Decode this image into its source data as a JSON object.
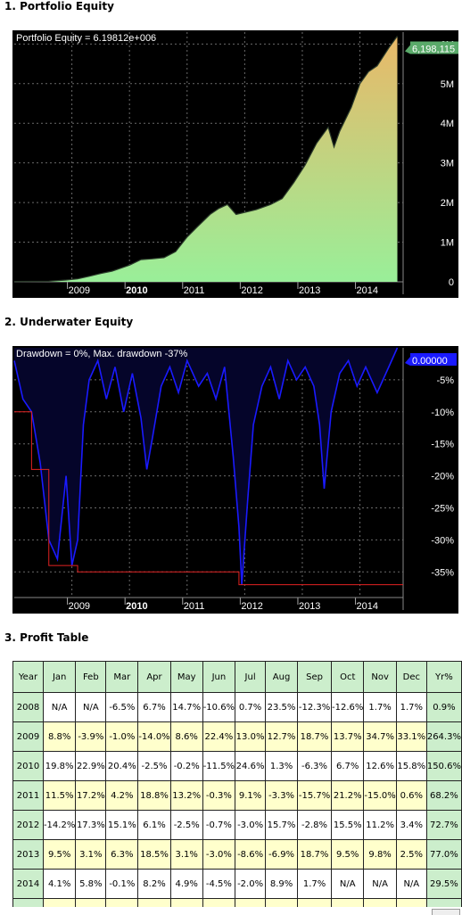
{
  "sections": {
    "s1": "1. Portfolio Equity",
    "s2": "2. Underwater Equity",
    "s3": "3. Profit Table"
  },
  "colors": {
    "grid": "#6a6a6a",
    "area_top": "#e9b868",
    "area_bottom": "#99ef99",
    "equity_line": "#2b3b2b",
    "dd_line": "#1a1aff",
    "dd_fill": "#05052a",
    "maxdd": "#e22222",
    "badge_green": "#5aaa6a",
    "badge_blue": "#1a1aff"
  },
  "chart_data": [
    {
      "type": "area",
      "label": "Portfolio Equity = 6.19812e+006",
      "last_value_label": "6,198,115",
      "y_ticks": [
        "0",
        "1M",
        "2M",
        "3M",
        "4M",
        "5M",
        "6M"
      ],
      "ylim": [
        0,
        6300000
      ],
      "x_ticks": [
        "2009",
        "2010",
        "2011",
        "2012",
        "2013",
        "2014"
      ],
      "x_bold": "2010",
      "xlim": [
        2008.0,
        2014.75
      ],
      "points": [
        [
          2008.0,
          10000
        ],
        [
          2008.3,
          11000
        ],
        [
          2008.6,
          14000
        ],
        [
          2008.9,
          45000
        ],
        [
          2009.1,
          75000
        ],
        [
          2009.3,
          140000
        ],
        [
          2009.5,
          210000
        ],
        [
          2009.7,
          270000
        ],
        [
          2010.0,
          420000
        ],
        [
          2010.2,
          560000
        ],
        [
          2010.4,
          580000
        ],
        [
          2010.6,
          610000
        ],
        [
          2010.8,
          760000
        ],
        [
          2011.0,
          1130000
        ],
        [
          2011.2,
          1420000
        ],
        [
          2011.4,
          1700000
        ],
        [
          2011.55,
          1850000
        ],
        [
          2011.7,
          1950000
        ],
        [
          2011.85,
          1700000
        ],
        [
          2012.0,
          1750000
        ],
        [
          2012.2,
          1820000
        ],
        [
          2012.45,
          1950000
        ],
        [
          2012.65,
          2100000
        ],
        [
          2012.85,
          2500000
        ],
        [
          2013.05,
          2950000
        ],
        [
          2013.25,
          3500000
        ],
        [
          2013.45,
          3900000
        ],
        [
          2013.55,
          3400000
        ],
        [
          2013.65,
          3800000
        ],
        [
          2013.85,
          4400000
        ],
        [
          2014.0,
          5000000
        ],
        [
          2014.15,
          5300000
        ],
        [
          2014.3,
          5450000
        ],
        [
          2014.5,
          5900000
        ],
        [
          2014.65,
          6198115
        ]
      ]
    },
    {
      "type": "area",
      "label": "Drawdown = 0%, Max. drawdown -37%",
      "last_value_label": "0.00000",
      "y_ticks": [
        "-5%",
        "-10%",
        "-15%",
        "-20%",
        "-25%",
        "-30%",
        "-35%"
      ],
      "ylim": [
        -39,
        0
      ],
      "x_ticks": [
        "2009",
        "2010",
        "2011",
        "2012",
        "2013",
        "2014"
      ],
      "x_bold": "2010",
      "xlim": [
        2008.0,
        2014.75
      ],
      "max_drawdown": -37,
      "max_drawdown_steps": [
        [
          2008.0,
          -10
        ],
        [
          2008.3,
          -19
        ],
        [
          2008.6,
          -34
        ],
        [
          2009.1,
          -35
        ],
        [
          2011.9,
          -37
        ],
        [
          2014.75,
          -37
        ]
      ],
      "drawdown": [
        [
          2008.0,
          -2
        ],
        [
          2008.15,
          -8
        ],
        [
          2008.3,
          -10
        ],
        [
          2008.45,
          -18
        ],
        [
          2008.6,
          -30
        ],
        [
          2008.75,
          -33
        ],
        [
          2008.9,
          -20
        ],
        [
          2009.0,
          -34
        ],
        [
          2009.1,
          -30
        ],
        [
          2009.2,
          -12
        ],
        [
          2009.3,
          -5
        ],
        [
          2009.45,
          -2
        ],
        [
          2009.6,
          -8
        ],
        [
          2009.75,
          -3
        ],
        [
          2009.9,
          -10
        ],
        [
          2010.05,
          -4
        ],
        [
          2010.2,
          -11
        ],
        [
          2010.3,
          -19
        ],
        [
          2010.4,
          -14
        ],
        [
          2010.55,
          -6
        ],
        [
          2010.7,
          -3
        ],
        [
          2010.85,
          -7
        ],
        [
          2011.0,
          -2
        ],
        [
          2011.2,
          -6
        ],
        [
          2011.35,
          -4
        ],
        [
          2011.5,
          -8
        ],
        [
          2011.65,
          -3
        ],
        [
          2011.8,
          -17
        ],
        [
          2011.9,
          -28
        ],
        [
          2011.95,
          -37
        ],
        [
          2012.05,
          -24
        ],
        [
          2012.15,
          -12
        ],
        [
          2012.3,
          -6
        ],
        [
          2012.45,
          -3
        ],
        [
          2012.6,
          -8
        ],
        [
          2012.75,
          -2
        ],
        [
          2012.9,
          -5
        ],
        [
          2013.05,
          -3
        ],
        [
          2013.2,
          -6
        ],
        [
          2013.3,
          -12
        ],
        [
          2013.38,
          -22
        ],
        [
          2013.5,
          -10
        ],
        [
          2013.65,
          -4
        ],
        [
          2013.8,
          -2
        ],
        [
          2013.95,
          -6
        ],
        [
          2014.1,
          -3
        ],
        [
          2014.3,
          -7
        ],
        [
          2014.5,
          -3
        ],
        [
          2014.65,
          0
        ]
      ]
    },
    {
      "type": "table",
      "columns": [
        "Year",
        "Jan",
        "Feb",
        "Mar",
        "Apr",
        "May",
        "Jun",
        "Jul",
        "Aug",
        "Sep",
        "Oct",
        "Nov",
        "Dec",
        "Yr%"
      ],
      "rows": [
        [
          "2008",
          "N/A",
          "N/A",
          "-6.5%",
          "6.7%",
          "14.7%",
          "-10.6%",
          "0.7%",
          "23.5%",
          "-12.3%",
          "-12.6%",
          "1.7%",
          "1.7%",
          "0.9%"
        ],
        [
          "2009",
          "8.8%",
          "-3.9%",
          "-1.0%",
          "-14.0%",
          "8.6%",
          "22.4%",
          "13.0%",
          "12.7%",
          "18.7%",
          "13.7%",
          "34.7%",
          "33.1%",
          "264.3%"
        ],
        [
          "2010",
          "19.8%",
          "22.9%",
          "20.4%",
          "-2.5%",
          "-0.2%",
          "-11.5%",
          "24.6%",
          "1.3%",
          "-6.3%",
          "6.7%",
          "12.6%",
          "15.8%",
          "150.6%"
        ],
        [
          "2011",
          "11.5%",
          "17.2%",
          "4.2%",
          "18.8%",
          "13.2%",
          "-0.3%",
          "9.1%",
          "-3.3%",
          "-15.7%",
          "21.2%",
          "-15.0%",
          "0.6%",
          "68.2%"
        ],
        [
          "2012",
          "-14.2%",
          "17.3%",
          "15.1%",
          "6.1%",
          "-2.5%",
          "-0.7%",
          "-3.0%",
          "15.7%",
          "-2.8%",
          "15.5%",
          "11.2%",
          "3.4%",
          "72.7%"
        ],
        [
          "2013",
          "9.5%",
          "3.1%",
          "6.3%",
          "18.5%",
          "3.1%",
          "-3.0%",
          "-8.6%",
          "-6.9%",
          "18.7%",
          "9.5%",
          "9.8%",
          "2.5%",
          "77.0%"
        ],
        [
          "2014",
          "4.1%",
          "5.8%",
          "-0.1%",
          "8.2%",
          "4.9%",
          "-4.5%",
          "-2.0%",
          "8.9%",
          "1.7%",
          "N/A",
          "N/A",
          "N/A",
          "29.5%"
        ]
      ]
    }
  ]
}
